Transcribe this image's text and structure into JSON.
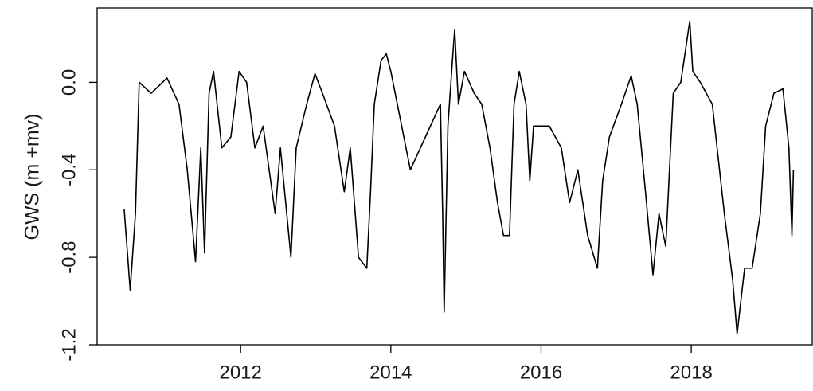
{
  "chart_data": {
    "type": "line",
    "ylabel": "GWS (m +mv)",
    "x": [
      2010.45,
      2010.53,
      2010.6,
      2010.65,
      2010.81,
      2011.02,
      2011.18,
      2011.29,
      2011.4,
      2011.47,
      2011.52,
      2011.58,
      2011.64,
      2011.75,
      2011.87,
      2011.98,
      2012.08,
      2012.19,
      2012.3,
      2012.46,
      2012.53,
      2012.67,
      2012.74,
      2012.88,
      2012.99,
      2013.09,
      2013.25,
      2013.38,
      2013.46,
      2013.57,
      2013.68,
      2013.73,
      2013.78,
      2013.87,
      2013.94,
      2014.0,
      2014.26,
      2014.66,
      2014.69,
      2014.71,
      2014.76,
      2014.82,
      2014.85,
      2014.9,
      2014.98,
      2015.11,
      2015.21,
      2015.32,
      2015.42,
      2015.5,
      2015.58,
      2015.64,
      2015.71,
      2015.8,
      2015.85,
      2015.9,
      2016.11,
      2016.27,
      2016.38,
      2016.49,
      2016.62,
      2016.75,
      2016.82,
      2016.91,
      2017.07,
      2017.2,
      2017.28,
      2017.39,
      2017.49,
      2017.57,
      2017.66,
      2017.76,
      2017.86,
      2017.98,
      2018.02,
      2018.12,
      2018.28,
      2018.44,
      2018.55,
      2018.61,
      2018.71,
      2018.81,
      2018.92,
      2018.99,
      2019.1,
      2019.22,
      2019.3,
      2019.34,
      2019.36
    ],
    "series": [
      {
        "color": "#000000",
        "values": [
          -0.58,
          -0.95,
          -0.6,
          0.0,
          -0.05,
          0.02,
          -0.1,
          -0.4,
          -0.82,
          -0.3,
          -0.78,
          -0.05,
          0.05,
          -0.3,
          -0.25,
          0.05,
          0.0,
          -0.3,
          -0.2,
          -0.6,
          -0.3,
          -0.8,
          -0.3,
          -0.1,
          0.04,
          -0.05,
          -0.2,
          -0.5,
          -0.3,
          -0.8,
          -0.85,
          -0.5,
          -0.1,
          0.1,
          0.13,
          0.05,
          -0.4,
          -0.1,
          -0.6,
          -1.05,
          -0.2,
          0.1,
          0.24,
          -0.1,
          0.05,
          -0.05,
          -0.1,
          -0.3,
          -0.55,
          -0.7,
          -0.7,
          -0.1,
          0.05,
          -0.1,
          -0.45,
          -0.2,
          -0.2,
          -0.3,
          -0.55,
          -0.4,
          -0.7,
          -0.85,
          -0.45,
          -0.25,
          -0.1,
          0.03,
          -0.1,
          -0.5,
          -0.88,
          -0.6,
          -0.75,
          -0.05,
          0.0,
          0.28,
          0.05,
          0.0,
          -0.1,
          -0.6,
          -0.9,
          -1.15,
          -0.85,
          -0.85,
          -0.6,
          -0.2,
          -0.05,
          -0.03,
          -0.3,
          -0.7,
          -0.4
        ]
      }
    ],
    "xlim": [
      2010.09,
      2019.61
    ],
    "xticks": [
      2012,
      2014,
      2016,
      2018
    ],
    "ylim": [
      -1.2,
      0.34
    ],
    "yticks": [
      {
        "value": 0,
        "label": "0.0"
      },
      -0.4,
      -0.8,
      -1.2
    ]
  }
}
